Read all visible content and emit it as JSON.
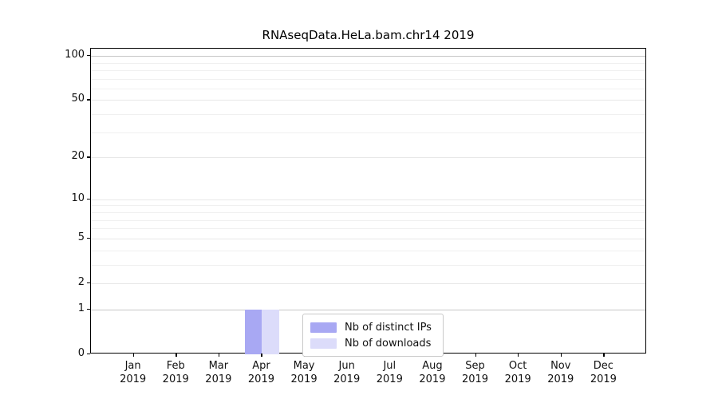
{
  "figure": {
    "title": "RNAseqData.HeLa.bam.chr14 2019",
    "background": "#ffffff"
  },
  "chart_data": {
    "type": "bar",
    "title": "RNAseqData.HeLa.bam.chr14 2019",
    "categories": [
      "Jan",
      "Feb",
      "Mar",
      "Apr",
      "May",
      "Jun",
      "Jul",
      "Aug",
      "Sep",
      "Oct",
      "Nov",
      "Dec"
    ],
    "x_year": "2019",
    "x_tick_labels": [
      "Jan 2019",
      "Feb 2019",
      "Mar 2019",
      "Apr 2019",
      "May 2019",
      "Jun 2019",
      "Jul 2019",
      "Aug 2019",
      "Sep 2019",
      "Oct 2019",
      "Nov 2019",
      "Dec 2019"
    ],
    "series": [
      {
        "name": "Nb of distinct IPs",
        "color": "#a8a8f3",
        "values": [
          0,
          0,
          0,
          1,
          0,
          0,
          0,
          0,
          0,
          0,
          0,
          0
        ]
      },
      {
        "name": "Nb of downloads",
        "color": "#dcdcfa",
        "values": [
          0,
          0,
          0,
          1,
          0,
          0,
          0,
          0,
          0,
          0,
          0,
          0
        ]
      }
    ],
    "yscale": "log1p",
    "ylim": [
      0,
      112
    ],
    "y_major_ticks": [
      0,
      1,
      2,
      5,
      10,
      20,
      50,
      100
    ],
    "y_minor_ticks": [
      3,
      4,
      6,
      7,
      8,
      9,
      30,
      40,
      60,
      70,
      80,
      90
    ],
    "y_emphasized_gridlines": [
      1,
      100
    ],
    "grid": true,
    "legend_position": "lower center inside plot",
    "xlabel": "",
    "ylabel": ""
  },
  "legend": {
    "items": [
      {
        "label": "Nb of distinct IPs",
        "color": "#a8a8f3"
      },
      {
        "label": "Nb of downloads",
        "color": "#dcdcfa"
      }
    ]
  },
  "colors": {
    "axis": "#000000",
    "text": "#111111",
    "grid_major": "#e7e7e7",
    "grid_minor": "#f0f0f0",
    "grid_emphasized": "#c6c6c6",
    "bar_distinct_ips": "#a8a8f3",
    "bar_downloads": "#dcdcfa"
  }
}
